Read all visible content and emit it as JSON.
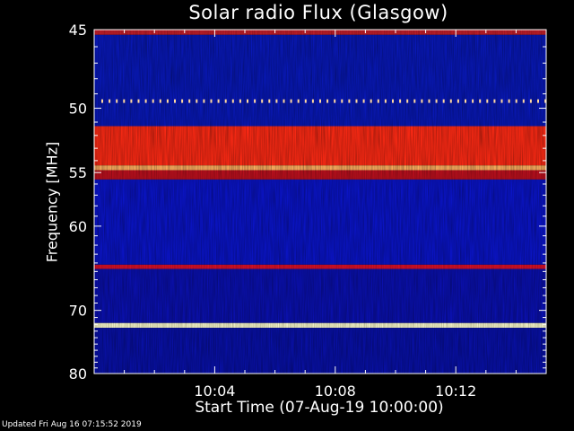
{
  "chart_data": {
    "type": "heatmap",
    "title": "Solar radio Flux (Glasgow)",
    "xlabel": "Start Time (07-Aug-19 10:00:00)",
    "ylabel": "Frequency [MHz]",
    "x_ticks": [
      "10:04",
      "10:08",
      "10:12"
    ],
    "x_tick_minutes": [
      4,
      8,
      12
    ],
    "xlim_minutes": [
      0,
      15
    ],
    "y_ticks": [
      45,
      50,
      55,
      60,
      70,
      80
    ],
    "ylim": [
      45,
      80
    ],
    "y_scale": "reciprocal",
    "colormap": [
      "#00006e",
      "#0a14d2",
      "#b4005a",
      "#ff2a14",
      "#ff9600",
      "#ffffdc"
    ],
    "bands": [
      {
        "freq_range": [
          45,
          45.3
        ],
        "level": "high",
        "color": "#c81e2a"
      },
      {
        "freq_range": [
          45.3,
          51.3
        ],
        "level": "low",
        "color": "#0818b8"
      },
      {
        "freq_range": [
          51.3,
          54.4
        ],
        "level": "high",
        "color": "#ff2a14"
      },
      {
        "freq_range": [
          54.4,
          54.8
        ],
        "level": "very high",
        "color": "#ffb060"
      },
      {
        "freq_range": [
          54.8,
          55.6
        ],
        "level": "medium",
        "color": "#c0101e"
      },
      {
        "freq_range": [
          55.6,
          64.2
        ],
        "level": "low",
        "color": "#0a14c8"
      },
      {
        "freq_range": [
          64.2,
          64.7
        ],
        "level": "high",
        "color": "#e01028"
      },
      {
        "freq_range": [
          64.7,
          71.8
        ],
        "level": "low",
        "color": "#0a10b0"
      },
      {
        "freq_range": [
          71.8,
          72.5
        ],
        "level": "saturated",
        "color": "#ffffd0"
      },
      {
        "freq_range": [
          72.5,
          80
        ],
        "level": "low",
        "color": "#0810a8"
      }
    ],
    "footer": "Updated Fri Aug 16 07:15:52 2019"
  }
}
